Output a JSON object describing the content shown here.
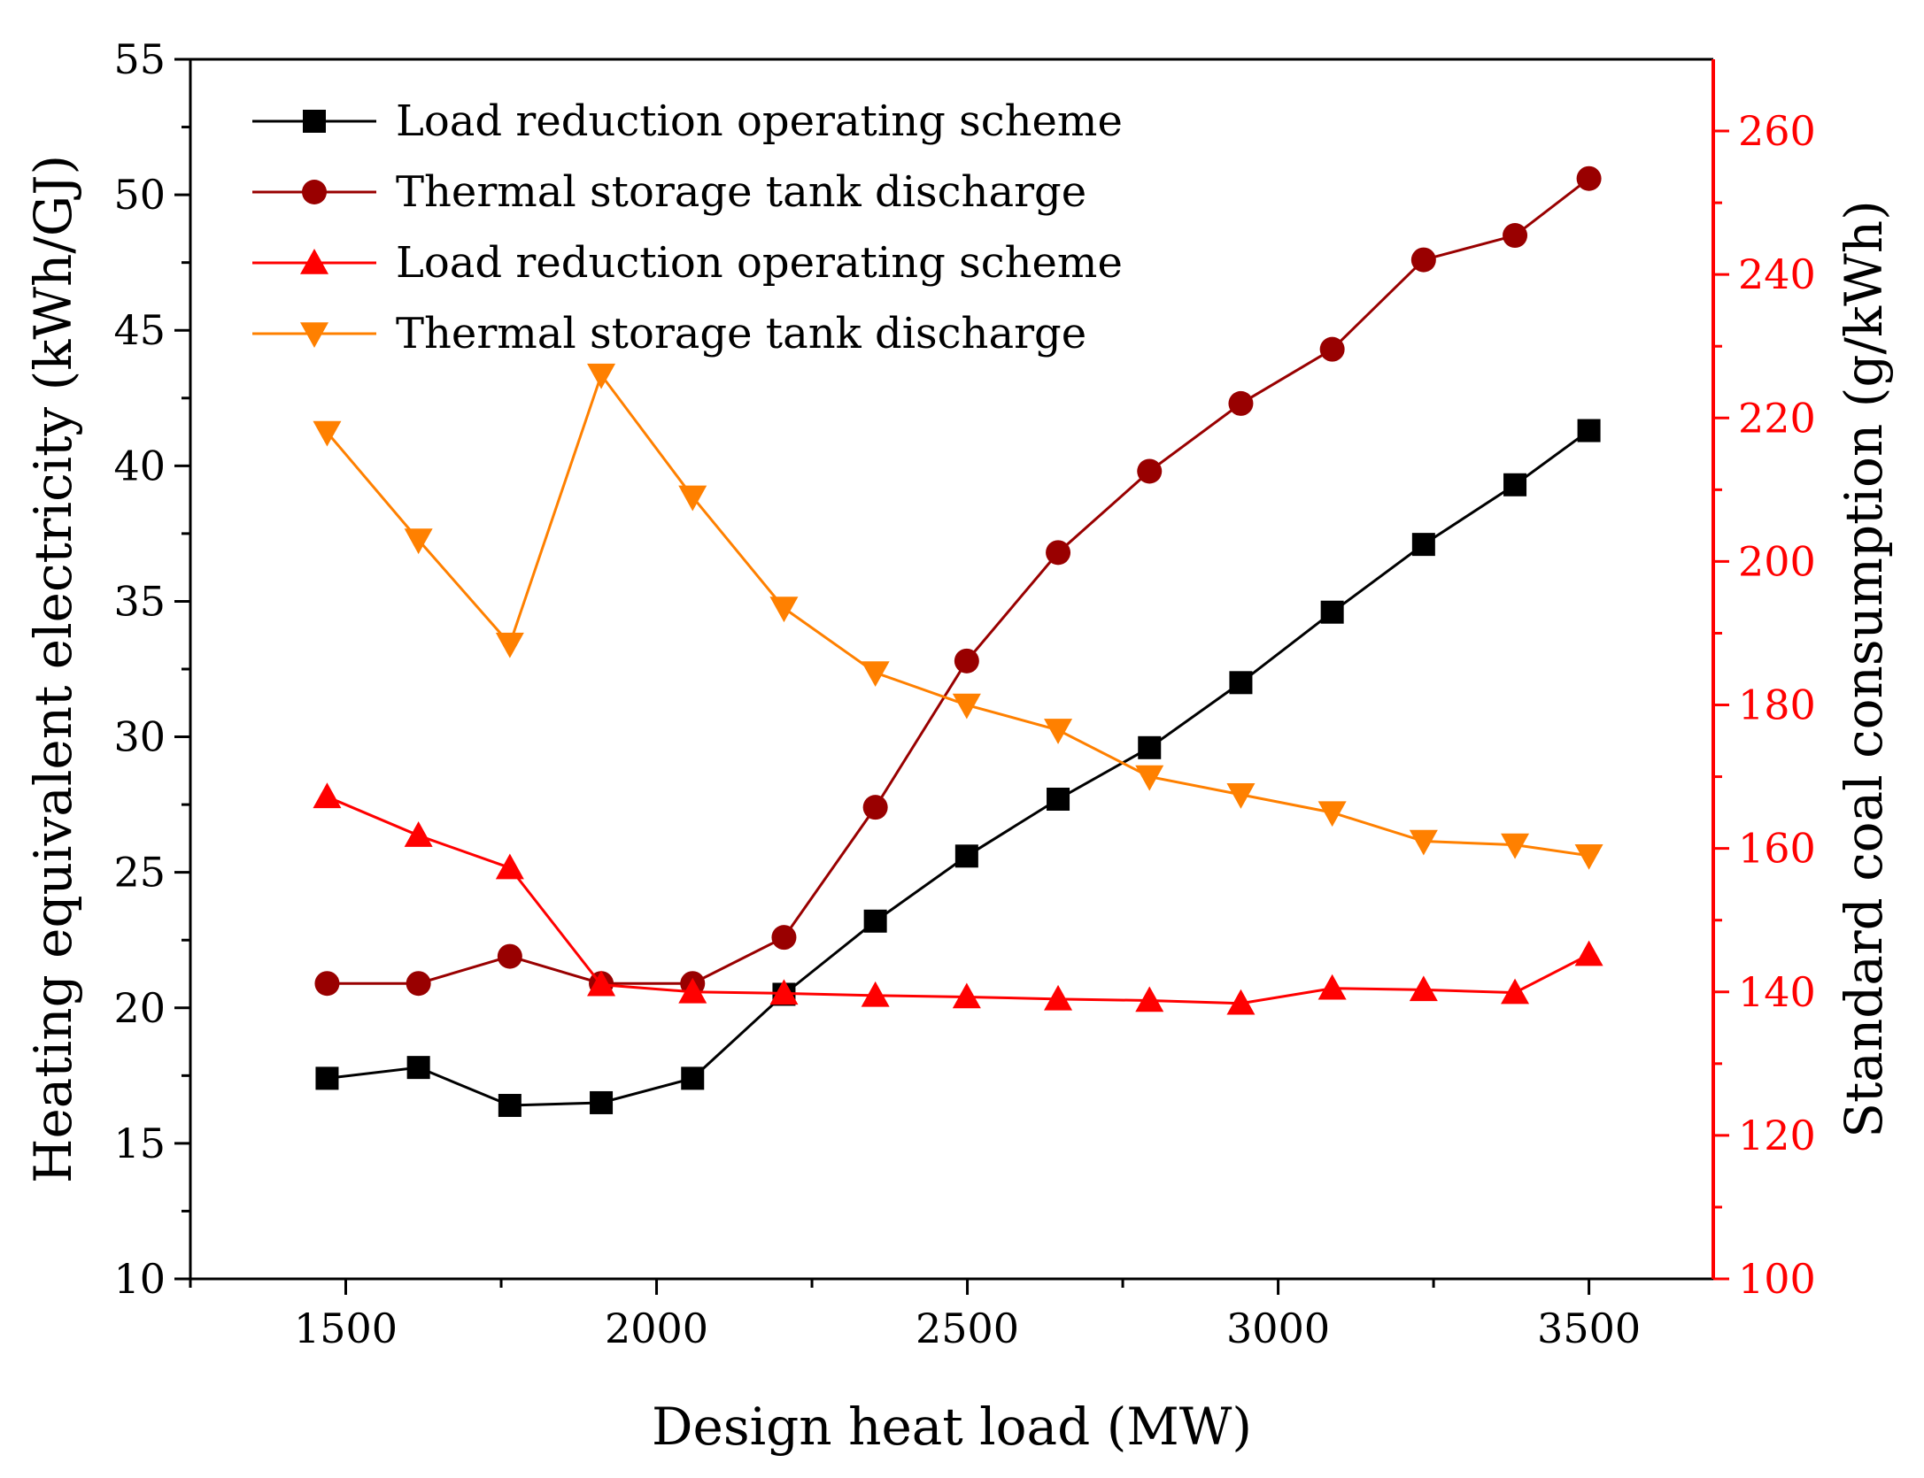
{
  "chart_data": {
    "type": "line",
    "xlabel": "Design heat load (MW)",
    "ylabel": "Heating equivalent electricity (kWh/GJ)",
    "ylabel_right": "Standard coal consumption (g/kWh)",
    "xlim": [
      1250,
      3700
    ],
    "ylim": [
      10,
      55
    ],
    "ylim_right": [
      100,
      270
    ],
    "x_ticks": [
      1500,
      2000,
      2500,
      3000,
      3500
    ],
    "y_ticks": [
      10,
      15,
      20,
      25,
      30,
      35,
      40,
      45,
      50,
      55
    ],
    "y_ticks_right": [
      100,
      120,
      140,
      160,
      180,
      200,
      220,
      240,
      260
    ],
    "x": [
      1470,
      1617,
      1764,
      1911,
      2058,
      2205,
      2352,
      2499,
      2646,
      2793,
      2940,
      3087,
      3234,
      3381,
      3500
    ],
    "legend_position": "top-left",
    "series": [
      {
        "name": "Load reduction operating scheme",
        "axis": "left",
        "color": "#000000",
        "marker": "square",
        "values": [
          17.4,
          17.8,
          16.4,
          16.5,
          17.4,
          20.5,
          23.2,
          25.6,
          27.7,
          29.6,
          32.0,
          34.6,
          37.1,
          39.3,
          41.3
        ]
      },
      {
        "name": "Thermal storage tank discharge",
        "axis": "left",
        "color": "#990000",
        "marker": "circle",
        "values": [
          20.9,
          20.9,
          21.9,
          20.9,
          20.9,
          22.6,
          27.4,
          32.8,
          36.8,
          39.8,
          42.3,
          44.3,
          47.6,
          48.5,
          50.6
        ]
      },
      {
        "name": "Load reduction operating scheme",
        "axis": "right",
        "color": "#ff0000",
        "marker": "triangle-up",
        "values": [
          167.2,
          161.8,
          157.3,
          141.0,
          140.0,
          139.8,
          139.5,
          139.3,
          139.0,
          138.8,
          138.4,
          140.5,
          140.3,
          139.9,
          145.2
        ]
      },
      {
        "name": "Thermal storage tank discharge",
        "axis": "right",
        "color": "#ff8000",
        "marker": "triangle-down",
        "values": [
          218.0,
          203.0,
          188.5,
          226.0,
          209.0,
          193.5,
          184.5,
          180.0,
          176.5,
          170.0,
          167.5,
          165.0,
          161.0,
          160.5,
          159.0
        ]
      }
    ]
  }
}
